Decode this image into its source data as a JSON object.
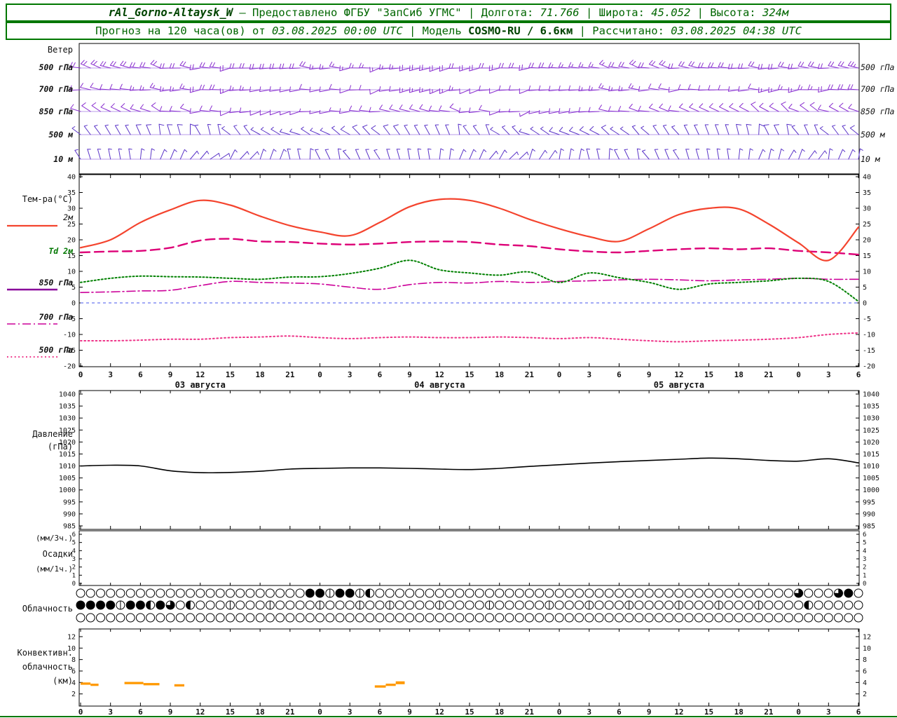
{
  "header": {
    "line1": {
      "s1": "rAl_Gorno-Altaysk_W",
      "s2": " — Предоставлено ФГБУ \"ЗапСиб УГМС\"",
      "s3": " | Долгота: ",
      "s4": "71.766",
      "s5": " | Широта: ",
      "s6": "45.052",
      "s7": " | Высота: ",
      "s8": "324м"
    },
    "line2": {
      "s1": "Прогноз на 120 часа(ов) от ",
      "s2": "03.08.2025 00:00 UTC",
      "s3": " | Модель ",
      "s4": "COSMO-RU / 6.6км",
      "s5": " | Рассчитано: ",
      "s6": "03.08.2025 04:38 UTC"
    }
  },
  "labels": {
    "wind_title": "Ветер",
    "wind_levels": [
      "500 гПа",
      "700 гПа",
      "850 гПа",
      "500 м",
      "10 м"
    ],
    "temp_title": "Тем-ра(°C)",
    "temp_legend": [
      "2м",
      "Td 2м",
      "850 гПа",
      "700 гПа",
      "500 гПа"
    ],
    "pressure_title1": "Давление",
    "pressure_title2": "(гПа)",
    "precip_title1": "(мм/3ч.)",
    "precip_title2": "Осадки",
    "precip_title3": "(мм/1ч.)",
    "cloud_title": "Облачность",
    "conv_title1": "Конвективн.",
    "conv_title2": "облачность",
    "conv_title3": "(км)"
  },
  "axes": {
    "hours_span": [
      0,
      78
    ],
    "hour_labels": [
      "0",
      "3",
      "6",
      "9",
      "12",
      "15",
      "18",
      "21",
      "0",
      "3",
      "6",
      "9",
      "12",
      "15",
      "18",
      "21",
      "0",
      "3",
      "6",
      "9",
      "12",
      "15",
      "18",
      "21",
      "0",
      "3",
      "6"
    ],
    "date_labels": [
      "03 августа",
      "04 августа",
      "05 августа"
    ],
    "temp_ticks": [
      "40",
      "35",
      "30",
      "25",
      "20",
      "15",
      "10",
      "5",
      "0",
      "-5",
      "-10",
      "-15",
      "-20"
    ],
    "pressure_ticks": [
      "1040",
      "1035",
      "1030",
      "1025",
      "1020",
      "1015",
      "1010",
      "1005",
      "1000",
      "995",
      "990",
      "985"
    ],
    "precip_ticks": [
      "6",
      "5",
      "4",
      "3",
      "2",
      "1",
      "0"
    ],
    "conv_ticks": [
      "12",
      "10",
      "8",
      "6",
      "4",
      "2"
    ]
  },
  "colors": {
    "header_green": "#007700",
    "barb_upper": "#8a2fd0",
    "barb_lower": "#5b35c8",
    "temp_2m": "#f4442e",
    "td_2m": "#008000",
    "t850": "#dd0077",
    "t700": "#cc0099",
    "t500": "#ee3388",
    "pressure": "#000000",
    "convective": "#ff9900",
    "zero_line": "#4455ee"
  },
  "chart_data": [
    {
      "type": "wind-barbs",
      "panel": "wind",
      "x_hours": [
        0,
        3,
        6,
        9,
        12,
        15,
        18,
        21,
        24,
        27,
        30,
        33,
        36,
        39,
        42,
        45,
        48,
        51,
        54,
        57,
        60,
        63,
        66,
        69,
        72,
        75,
        78
      ],
      "levels": [
        {
          "name": "500 гПа",
          "dir_deg": [
            290,
            285,
            280,
            275,
            270,
            265,
            265,
            270,
            270,
            265,
            260,
            255,
            255,
            260,
            265,
            270,
            275,
            280,
            285,
            285,
            280,
            275,
            270,
            270,
            275,
            280,
            285
          ],
          "speed_kt": [
            18,
            18,
            20,
            22,
            22,
            20,
            18,
            18,
            15,
            15,
            15,
            18,
            20,
            22,
            20,
            18,
            15,
            15,
            18,
            20,
            22,
            20,
            18,
            18,
            20,
            22,
            25
          ]
        },
        {
          "name": "700 гПа",
          "dir_deg": [
            280,
            275,
            270,
            268,
            265,
            262,
            260,
            262,
            265,
            262,
            258,
            255,
            252,
            255,
            260,
            262,
            265,
            268,
            270,
            272,
            270,
            268,
            265,
            262,
            265,
            270,
            275
          ],
          "speed_kt": [
            12,
            12,
            15,
            15,
            18,
            15,
            12,
            10,
            10,
            12,
            12,
            15,
            15,
            12,
            10,
            10,
            12,
            15,
            15,
            12,
            12,
            10,
            12,
            15,
            15,
            18,
            18
          ]
        },
        {
          "name": "850 гПа",
          "dir_deg": [
            300,
            295,
            290,
            280,
            270,
            260,
            250,
            255,
            265,
            270,
            280,
            285,
            280,
            270,
            260,
            255,
            260,
            270,
            280,
            285,
            290,
            295,
            300,
            305,
            300,
            295,
            290
          ],
          "speed_kt": [
            8,
            8,
            10,
            10,
            12,
            10,
            8,
            6,
            6,
            8,
            10,
            10,
            8,
            8,
            6,
            6,
            8,
            10,
            10,
            8,
            8,
            10,
            12,
            10,
            8,
            8,
            10
          ]
        },
        {
          "name": "500 м",
          "dir_deg": [
            320,
            330,
            340,
            350,
            340,
            320,
            300,
            290,
            300,
            310,
            320,
            330,
            340,
            330,
            310,
            300,
            290,
            300,
            310,
            320,
            330,
            340,
            350,
            340,
            330,
            320,
            310
          ],
          "speed_kt": [
            6,
            6,
            8,
            8,
            6,
            5,
            5,
            6,
            6,
            8,
            8,
            6,
            5,
            5,
            6,
            6,
            8,
            8,
            6,
            5,
            5,
            6,
            8,
            8,
            6,
            6,
            8
          ]
        },
        {
          "name": "10 м",
          "dir_deg": [
            340,
            350,
            10,
            30,
            50,
            40,
            20,
            350,
            340,
            330,
            340,
            350,
            10,
            30,
            40,
            30,
            10,
            350,
            340,
            330,
            340,
            350,
            10,
            20,
            30,
            20,
            10
          ],
          "speed_kt": [
            3,
            3,
            4,
            5,
            5,
            4,
            3,
            3,
            2,
            3,
            4,
            5,
            5,
            4,
            3,
            3,
            4,
            5,
            5,
            4,
            3,
            3,
            4,
            5,
            4,
            3,
            3
          ]
        }
      ]
    },
    {
      "type": "line",
      "panel": "temperature",
      "title": "Тем-ра(°C)",
      "ylim": [
        -20,
        40
      ],
      "x_hours": [
        0,
        3,
        6,
        9,
        12,
        15,
        18,
        21,
        24,
        27,
        30,
        33,
        36,
        39,
        42,
        45,
        48,
        51,
        54,
        57,
        60,
        63,
        66,
        69,
        72,
        75,
        78
      ],
      "series": [
        {
          "name": "2м",
          "color": "#f4442e",
          "dash": "solid",
          "values": [
            17.5,
            20,
            25.5,
            29.5,
            32.5,
            31,
            27.5,
            24.5,
            22.5,
            21.3,
            25.5,
            30.5,
            32.8,
            32.5,
            30,
            26.5,
            23.5,
            21,
            19.5,
            23.5,
            28,
            30,
            29.8,
            25,
            19,
            13.5,
            24
          ]
        },
        {
          "name": "Td 2м",
          "color": "#008000",
          "dash": "dotted",
          "values": [
            6.5,
            7.8,
            8.5,
            8.3,
            8.2,
            7.8,
            7.5,
            8.2,
            8.3,
            9.3,
            11,
            13.5,
            10.5,
            9.5,
            8.8,
            9.8,
            6.5,
            9.5,
            8,
            6.5,
            4.3,
            6,
            6.5,
            7,
            7.8,
            6.8,
            0.5
          ]
        },
        {
          "name": "850 гПа",
          "color": "#dd0077",
          "dash": "longdash",
          "values": [
            16,
            16.3,
            16.5,
            17.5,
            19.8,
            20.3,
            19.5,
            19.3,
            18.8,
            18.5,
            18.8,
            19.3,
            19.5,
            19.3,
            18.5,
            18,
            17,
            16.3,
            16,
            16.5,
            17,
            17.3,
            17,
            17.3,
            16.5,
            16,
            15.3
          ]
        },
        {
          "name": "700 гПа",
          "color": "#cc0099",
          "dash": "dashdot",
          "values": [
            3.3,
            3.5,
            3.8,
            4,
            5.5,
            6.8,
            6.5,
            6.3,
            6,
            5,
            4.3,
            5.8,
            6.5,
            6.3,
            6.8,
            6.5,
            6.8,
            7,
            7.3,
            7.5,
            7.3,
            7,
            7.3,
            7.5,
            7.8,
            7.5,
            7.5
          ]
        },
        {
          "name": "500 гПа",
          "color": "#ee3388",
          "dash": "dense-dot",
          "values": [
            -12,
            -12,
            -11.8,
            -11.5,
            -11.5,
            -11,
            -10.8,
            -10.5,
            -11,
            -11.3,
            -11,
            -10.8,
            -11,
            -11,
            -10.8,
            -11,
            -11.3,
            -11,
            -11.5,
            -12,
            -12.3,
            -12,
            -11.8,
            -11.5,
            -11,
            -10,
            -9.5
          ]
        }
      ]
    },
    {
      "type": "line",
      "panel": "pressure",
      "title": "Давление (гПа)",
      "ylim": [
        985,
        1040
      ],
      "x_hours": [
        0,
        3,
        6,
        9,
        12,
        15,
        18,
        21,
        24,
        27,
        30,
        33,
        36,
        39,
        42,
        45,
        48,
        51,
        54,
        57,
        60,
        63,
        66,
        69,
        72,
        75,
        78
      ],
      "series": [
        {
          "name": "Давление",
          "color": "#000000",
          "dash": "solid",
          "values": [
            1010,
            1010.3,
            1010,
            1008,
            1007.2,
            1007.3,
            1007.8,
            1008.7,
            1009,
            1009.2,
            1009.2,
            1009,
            1008.7,
            1008.5,
            1009,
            1009.8,
            1010.5,
            1011.2,
            1011.8,
            1012.3,
            1012.8,
            1013.3,
            1013,
            1012.3,
            1012,
            1013,
            1011.3
          ]
        }
      ]
    },
    {
      "type": "bar",
      "panel": "precip",
      "title": "Осадки (мм/3ч., мм/1ч.)",
      "ylim": [
        0,
        6
      ],
      "x_hours": [
        0,
        3,
        6,
        9,
        12,
        15,
        18,
        21,
        24,
        27,
        30,
        33,
        36,
        39,
        42,
        45,
        48,
        51,
        54,
        57,
        60,
        63,
        66,
        69,
        72,
        75,
        78
      ],
      "values_mm": [
        0,
        0,
        0,
        0,
        0,
        0,
        0,
        0,
        0,
        0,
        0,
        0,
        0,
        0,
        0,
        0,
        0,
        0,
        0,
        0,
        0,
        0,
        0,
        0,
        0,
        0,
        0
      ]
    },
    {
      "type": "symbol-rows",
      "panel": "cloud",
      "title": "Облачность",
      "n_hours": 79,
      "rows": [
        {
          "marks": {
            "23": "#",
            "24": "#",
            "25": "v",
            "26": "#",
            "27": "#",
            "28": "v",
            "29": "l",
            "72": "q",
            "76": "q",
            "77": "#"
          }
        },
        {
          "marks": {
            "0": "#",
            "1": "#",
            "2": "#",
            "3": "#",
            "4": "v",
            "5": "#",
            "6": "#",
            "7": "l",
            "8": "#",
            "9": "q",
            "11": "l",
            "15": "v",
            "19": "v",
            "24": "v",
            "28": "v",
            "31": "v",
            "36": "v",
            "41": "v",
            "47": "v",
            "51": "v",
            "55": "v",
            "60": "v",
            "64": "v",
            "68": "v",
            "73": "l"
          }
        },
        {
          "marks": {}
        }
      ]
    },
    {
      "type": "bar-segments",
      "panel": "convective",
      "title": "Конвективн. облачность (км)",
      "ylim": [
        0,
        13
      ],
      "segments": [
        {
          "h1": 0.0,
          "h2": 1.0,
          "km1": 3.6,
          "km2": 4.0
        },
        {
          "h1": 1.0,
          "h2": 1.8,
          "km1": 3.4,
          "km2": 3.8
        },
        {
          "h1": 4.4,
          "h2": 6.3,
          "km1": 3.7,
          "km2": 4.1
        },
        {
          "h1": 6.3,
          "h2": 7.9,
          "km1": 3.5,
          "km2": 3.9
        },
        {
          "h1": 9.4,
          "h2": 10.4,
          "km1": 3.3,
          "km2": 3.7
        },
        {
          "h1": 29.5,
          "h2": 30.6,
          "km1": 3.1,
          "km2": 3.5
        },
        {
          "h1": 30.6,
          "h2": 31.6,
          "km1": 3.4,
          "km2": 3.8
        },
        {
          "h1": 31.6,
          "h2": 32.5,
          "km1": 3.7,
          "km2": 4.2
        }
      ]
    }
  ]
}
